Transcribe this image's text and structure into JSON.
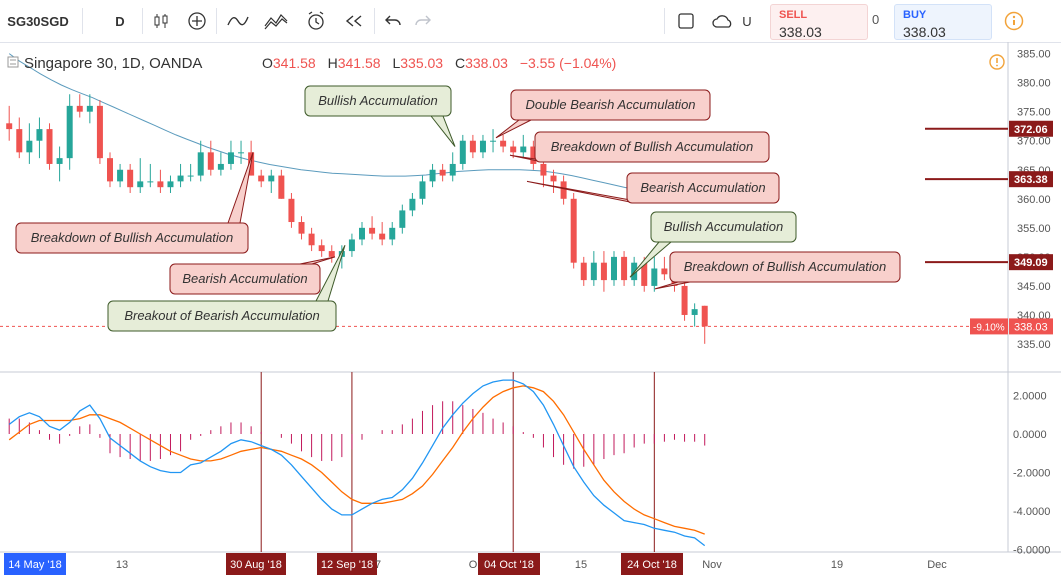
{
  "toolbar": {
    "symbol": "SG30SGD",
    "interval": "D",
    "unit_label": "U",
    "sell_label": "SELL",
    "sell_price": "338.03",
    "spread": "0",
    "buy_label": "BUY",
    "buy_price": "338.03",
    "icons": [
      "candles-icon",
      "add-indicator-icon",
      "line-style-icon",
      "compare-icon",
      "alert-icon",
      "replay-icon",
      "undo-icon",
      "redo-icon",
      "square-icon",
      "cloud-icon",
      "info-icon"
    ]
  },
  "legend": {
    "title": "Singapore 30, 1D, OANDA",
    "o_label": "O",
    "o": "341.58",
    "h_label": "H",
    "h": "341.58",
    "l_label": "L",
    "l": "335.03",
    "c_label": "C",
    "c": "338.03",
    "change": "−3.55 (−1.04%)"
  },
  "colors": {
    "up": "#26a69a",
    "down": "#ef5350",
    "ma": "#5b9bbd",
    "macd": "#2196f3",
    "signal": "#ff6d00",
    "hist": "#c2185b",
    "marker": "#8b1a1a",
    "label_red_bg": "#f8d0cc",
    "label_green_bg": "#e6edd8"
  },
  "chart_data": [
    {
      "type": "candlestick",
      "title": "Singapore 30, 1D, OANDA",
      "ylim": [
        332.5,
        387
      ],
      "y_ticks": [
        "335.00",
        "340.00",
        "345.00",
        "350.00",
        "355.00",
        "360.00",
        "365.00",
        "370.00",
        "375.00",
        "380.00",
        "385.00"
      ],
      "x_ticks": [
        "14 May '18",
        "13",
        "30 Aug '18",
        "12 Sep '18",
        "7",
        "O",
        "04 Oct '18",
        "15",
        "24 Oct '18",
        "Nov",
        "19",
        "Dec"
      ],
      "candles": [
        [
          373,
          376,
          370,
          372
        ],
        [
          372,
          374,
          367,
          368
        ],
        [
          368,
          373,
          366,
          370
        ],
        [
          370,
          374,
          367,
          372
        ],
        [
          372,
          373,
          365,
          366
        ],
        [
          366,
          369,
          363,
          367
        ],
        [
          367,
          378,
          365,
          376
        ],
        [
          376,
          378,
          374,
          375
        ],
        [
          375,
          378,
          373,
          376
        ],
        [
          376,
          377,
          366,
          367
        ],
        [
          367,
          368,
          362,
          363
        ],
        [
          363,
          366,
          362,
          365
        ],
        [
          365,
          366,
          361,
          362
        ],
        [
          362,
          367,
          361,
          363
        ],
        [
          363,
          366,
          362,
          363
        ],
        [
          363,
          365,
          361,
          362
        ],
        [
          362,
          364,
          361,
          363
        ],
        [
          363,
          366,
          362,
          364
        ],
        [
          364,
          366,
          363,
          364
        ],
        [
          364,
          370,
          363,
          368
        ],
        [
          368,
          370,
          364,
          365
        ],
        [
          365,
          368,
          364,
          366
        ],
        [
          366,
          370,
          365,
          368
        ],
        [
          368,
          370,
          366,
          368
        ],
        [
          368,
          370,
          364,
          364
        ],
        [
          364,
          365,
          362,
          363
        ],
        [
          363,
          365,
          361,
          364
        ],
        [
          364,
          365,
          360,
          360
        ],
        [
          360,
          361,
          355,
          356
        ],
        [
          356,
          357,
          353,
          354
        ],
        [
          354,
          355,
          351,
          352
        ],
        [
          352,
          353,
          350,
          351
        ],
        [
          351,
          352,
          349,
          350
        ],
        [
          350,
          352,
          348,
          351
        ],
        [
          351,
          354,
          350,
          353
        ],
        [
          353,
          356,
          352,
          355
        ],
        [
          355,
          357,
          353,
          354
        ],
        [
          354,
          356,
          352,
          353
        ],
        [
          353,
          356,
          352,
          355
        ],
        [
          355,
          359,
          354,
          358
        ],
        [
          358,
          361,
          357,
          360
        ],
        [
          360,
          364,
          359,
          363
        ],
        [
          363,
          366,
          362,
          365
        ],
        [
          365,
          366,
          363,
          364
        ],
        [
          364,
          368,
          363,
          366
        ],
        [
          366,
          371,
          365,
          370
        ],
        [
          370,
          371,
          367,
          368
        ],
        [
          368,
          371,
          367,
          370
        ],
        [
          370,
          372,
          368,
          370
        ],
        [
          370,
          371,
          368,
          369
        ],
        [
          369,
          370,
          367,
          368
        ],
        [
          368,
          371,
          367,
          369
        ],
        [
          369,
          370,
          365,
          366
        ],
        [
          366,
          367,
          362,
          364
        ],
        [
          364,
          365,
          361,
          363
        ],
        [
          363,
          364,
          359,
          360
        ],
        [
          360,
          361,
          348,
          349
        ],
        [
          349,
          350,
          345,
          346
        ],
        [
          346,
          351,
          345,
          349
        ],
        [
          349,
          351,
          344,
          346
        ],
        [
          346,
          351,
          345,
          350
        ],
        [
          350,
          351,
          345,
          346
        ],
        [
          346,
          350,
          345,
          349
        ],
        [
          349,
          350,
          344,
          345
        ],
        [
          345,
          350,
          344,
          348
        ],
        [
          348,
          350,
          346,
          347
        ],
        [
          347,
          349,
          344,
          345
        ],
        [
          345,
          346,
          339,
          340
        ],
        [
          340,
          342,
          338,
          341
        ],
        [
          341.58,
          341.58,
          335.03,
          338.03
        ]
      ],
      "moving_average": [
        385,
        383.7,
        382.6,
        381.5,
        380.5,
        379.6,
        378.8,
        378.1,
        377.4,
        376.6,
        375.8,
        375,
        374.2,
        373.4,
        372.6,
        371.8,
        371,
        370.3,
        369.6,
        368.9,
        368.3,
        367.7,
        367.2,
        366.7,
        366.3,
        365.9,
        365.6,
        365.3,
        365,
        364.8,
        364.6,
        364.4,
        364.3,
        364.2,
        364.1,
        364,
        363.9,
        363.9,
        363.9,
        364,
        364.1,
        364.3,
        364.5,
        364.7,
        364.8,
        364.9,
        365,
        365,
        365,
        365,
        364.9,
        364.8,
        364.6,
        364.3,
        364,
        363.6,
        363.2,
        362.8,
        362.4,
        362,
        361.6,
        361.2,
        360.8
      ],
      "price_markers": [
        {
          "label": "372.06",
          "value": 372.06
        },
        {
          "label": "363.38",
          "value": 363.38
        },
        {
          "label": "349.09",
          "value": 349.09
        }
      ],
      "current_price": {
        "label": "338.03",
        "value": 338.03,
        "pct": "-9.10%"
      },
      "annotations": [
        {
          "text": "Bullish Accumulation",
          "style": "green",
          "anchor": [
            46,
            369
          ]
        },
        {
          "text": "Double Bearish Accumulation",
          "style": "red",
          "anchor": [
            49,
            370
          ]
        },
        {
          "text": "Breakdown of Bullish Accumulation",
          "style": "red",
          "anchor": [
            50,
            367.5
          ]
        },
        {
          "text": "Bearish Accumulation",
          "style": "red",
          "anchor": [
            52,
            363
          ]
        },
        {
          "text": "Bullish Accumulation",
          "style": "green",
          "anchor": [
            62,
            347
          ]
        },
        {
          "text": "Breakdown of Bullish Accumulation",
          "style": "red",
          "anchor": [
            65,
            345
          ]
        },
        {
          "text": "Breakdown of Bullish Accumulation",
          "style": "red",
          "anchor": [
            25,
            368
          ]
        },
        {
          "text": "Bearish Accumulation",
          "style": "red",
          "anchor": [
            32,
            350
          ]
        },
        {
          "text": "Breakout of Bearish Accumulation",
          "style": "green",
          "anchor": [
            34,
            352
          ]
        }
      ]
    },
    {
      "type": "line",
      "subtype": "macd",
      "ylim": [
        -6.2,
        3.2
      ],
      "y_ticks": [
        "2.0000",
        "0.0000",
        "-2.0000",
        "-4.0000",
        "-6.0000"
      ],
      "series": [
        {
          "role": "macd",
          "values": [
            0.5,
            0.9,
            1.1,
            0.9,
            0.4,
            0.2,
            0.6,
            1.2,
            1.5,
            0.8,
            -0.2,
            -0.6,
            -1.0,
            -1.4,
            -1.7,
            -1.9,
            -2.0,
            -2.0,
            -1.6,
            -1.5,
            -1.2,
            -0.9,
            -0.5,
            -0.3,
            -0.4,
            -0.6,
            -0.8,
            -1.1,
            -1.6,
            -2.2,
            -2.8,
            -3.4,
            -3.9,
            -4.2,
            -4.2,
            -3.9,
            -3.6,
            -3.4,
            -3.3,
            -2.9,
            -2.3,
            -1.5,
            -0.6,
            0.3,
            1.0,
            1.6,
            2.1,
            2.5,
            2.7,
            2.8,
            2.8,
            2.6,
            2.2,
            1.5,
            0.5,
            -0.6,
            -1.7,
            -2.5,
            -3.2,
            -3.7,
            -4.1,
            -4.5,
            -4.6,
            -4.7,
            -4.9,
            -5.0,
            -5.1,
            -5.3,
            -5.4,
            -5.8
          ]
        },
        {
          "role": "signal",
          "values": [
            -0.3,
            0.1,
            0.5,
            0.7,
            0.7,
            0.7,
            0.7,
            0.8,
            1.0,
            1.0,
            0.8,
            0.6,
            0.3,
            0.0,
            -0.3,
            -0.6,
            -0.9,
            -1.1,
            -1.3,
            -1.4,
            -1.4,
            -1.3,
            -1.1,
            -0.9,
            -0.8,
            -0.7,
            -0.8,
            -0.9,
            -1.1,
            -1.3,
            -1.6,
            -2.0,
            -2.5,
            -3.0,
            -3.4,
            -3.6,
            -3.6,
            -3.6,
            -3.5,
            -3.4,
            -3.1,
            -2.7,
            -2.1,
            -1.4,
            -0.7,
            0.1,
            0.8,
            1.4,
            1.9,
            2.2,
            2.4,
            2.5,
            2.4,
            2.2,
            1.7,
            1.0,
            0.1,
            -0.8,
            -1.6,
            -2.4,
            -3.0,
            -3.5,
            -3.9,
            -4.2,
            -4.4,
            -4.6,
            -4.8,
            -4.9,
            -5.0,
            -5.2
          ]
        },
        {
          "role": "histogram",
          "values": [
            0.8,
            0.8,
            0.6,
            0.2,
            -0.3,
            -0.5,
            -0.1,
            0.4,
            0.5,
            -0.2,
            -1.0,
            -1.2,
            -1.3,
            -1.4,
            -1.4,
            -1.3,
            -1.1,
            -0.9,
            -0.3,
            -0.1,
            0.2,
            0.4,
            0.6,
            0.6,
            0.4,
            0.1,
            0,
            -0.2,
            -0.5,
            -0.9,
            -1.2,
            -1.4,
            -1.4,
            -1.2,
            -0.8,
            -0.3,
            0,
            0.2,
            0.2,
            0.5,
            0.8,
            1.2,
            1.5,
            1.7,
            1.7,
            1.5,
            1.3,
            1.1,
            0.8,
            0.6,
            0.4,
            0.1,
            -0.2,
            -0.7,
            -1.2,
            -1.6,
            -1.8,
            -1.7,
            -1.6,
            -1.3,
            -1.1,
            -1.0,
            -0.7,
            -0.5,
            -0.5,
            -0.4,
            -0.3,
            -0.4,
            -0.4,
            -0.6
          ]
        }
      ]
    }
  ]
}
